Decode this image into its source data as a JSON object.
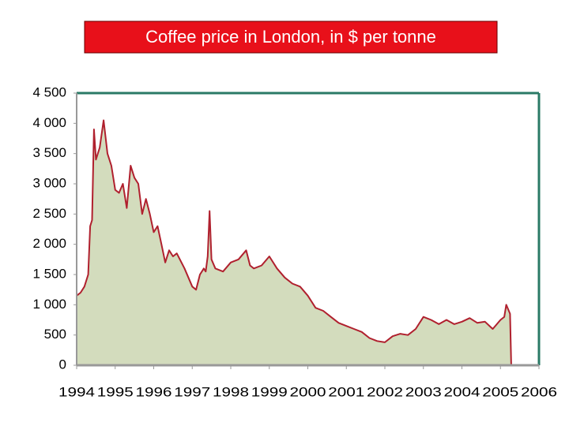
{
  "chart_data": {
    "type": "area",
    "title": "Coffee price in London, in $ per tonne",
    "x": [
      1994.0,
      1994.1,
      1994.2,
      1994.3,
      1994.35,
      1994.4,
      1994.45,
      1994.5,
      1994.6,
      1994.7,
      1994.8,
      1994.9,
      1995.0,
      1995.1,
      1995.2,
      1995.3,
      1995.4,
      1995.5,
      1995.6,
      1995.7,
      1995.8,
      1995.9,
      1996.0,
      1996.1,
      1996.2,
      1996.3,
      1996.4,
      1996.5,
      1996.6,
      1996.8,
      1996.9,
      1997.0,
      1997.1,
      1997.2,
      1997.3,
      1997.35,
      1997.4,
      1997.45,
      1997.5,
      1997.6,
      1997.8,
      1998.0,
      1998.2,
      1998.4,
      1998.5,
      1998.6,
      1998.8,
      1999.0,
      1999.2,
      1999.4,
      1999.6,
      1999.8,
      2000.0,
      2000.2,
      2000.4,
      2000.6,
      2000.8,
      2001.0,
      2001.2,
      2001.4,
      2001.6,
      2001.8,
      2002.0,
      2002.2,
      2002.4,
      2002.6,
      2002.8,
      2003.0,
      2003.2,
      2003.4,
      2003.6,
      2003.8,
      2004.0,
      2004.2,
      2004.4,
      2004.6,
      2004.8,
      2005.0,
      2005.1,
      2005.15,
      2005.25,
      2005.28
    ],
    "values": [
      1150,
      1200,
      1300,
      1500,
      2300,
      2400,
      3900,
      3400,
      3600,
      4050,
      3500,
      3300,
      2900,
      2850,
      3000,
      2600,
      3300,
      3100,
      3000,
      2500,
      2750,
      2500,
      2200,
      2300,
      2000,
      1700,
      1900,
      1800,
      1850,
      1600,
      1450,
      1300,
      1250,
      1500,
      1600,
      1550,
      1800,
      2550,
      1750,
      1600,
      1550,
      1700,
      1750,
      1900,
      1650,
      1600,
      1650,
      1800,
      1600,
      1450,
      1350,
      1300,
      1150,
      950,
      900,
      800,
      700,
      650,
      600,
      550,
      450,
      400,
      380,
      480,
      520,
      500,
      600,
      800,
      750,
      680,
      750,
      680,
      720,
      780,
      700,
      720,
      600,
      750,
      800,
      1000,
      850,
      0
    ],
    "color": "#b0202e",
    "fill": "#d3dcbd",
    "xlim": [
      1994,
      2006
    ],
    "xticks": [
      1994,
      1995,
      1996,
      1997,
      1998,
      1999,
      2000,
      2001,
      2002,
      2003,
      2004,
      2005,
      2006
    ],
    "ylim": [
      0,
      4500
    ],
    "yticks": [
      0,
      500,
      {
        "value": 1000,
        "label": "1 000"
      },
      {
        "value": 1500,
        "label": "1 500"
      },
      {
        "value": 2000,
        "label": "2 000"
      },
      {
        "value": 2500,
        "label": "2 500"
      },
      {
        "value": 3000,
        "label": "3 000"
      },
      {
        "value": 3500,
        "label": "3 500"
      },
      {
        "value": 4000,
        "label": "4 000"
      },
      {
        "value": 4500,
        "label": "4 500"
      }
    ]
  }
}
